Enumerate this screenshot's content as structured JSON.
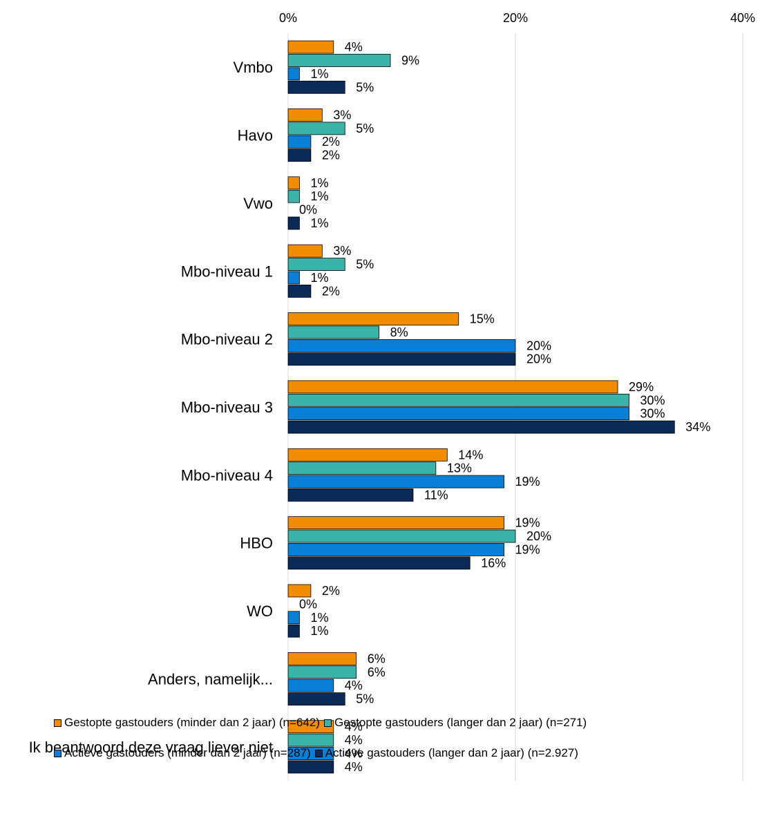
{
  "chart_data": {
    "type": "bar",
    "orientation": "horizontal",
    "categories": [
      "Vmbo",
      "Havo",
      "Vwo",
      "Mbo-niveau 1",
      "Mbo-niveau 2",
      "Mbo-niveau 3",
      "Mbo-niveau 4",
      "HBO",
      "WO",
      "Anders, namelijk...",
      "Ik beantwoord deze vraag liever niet"
    ],
    "series": [
      {
        "name": "Gestopte gastouders (minder dan 2 jaar) (n=642)",
        "color": "#F28C00",
        "values": [
          4,
          3,
          1,
          3,
          15,
          29,
          14,
          19,
          2,
          6,
          4
        ],
        "labels": [
          "4%",
          "3%",
          "1%",
          "3%",
          "15%",
          "29%",
          "14%",
          "19%",
          "2%",
          "6%",
          "4%"
        ]
      },
      {
        "name": "Gestopte gastouders (langer dan 2 jaar) (n=271)",
        "color": "#3AB3A8",
        "values": [
          9,
          5,
          1,
          5,
          8,
          30,
          13,
          20,
          0,
          6,
          4
        ],
        "labels": [
          "9%",
          "5%",
          "1%",
          "5%",
          "8%",
          "30%",
          "13%",
          "20%",
          "0%",
          "6%",
          "4%"
        ]
      },
      {
        "name": "Actieve gastouders (minder dan 2 jaar) (n=287)",
        "color": "#0A7FD8",
        "values": [
          1,
          2,
          0,
          1,
          20,
          30,
          19,
          19,
          1,
          4,
          4
        ],
        "labels": [
          "1%",
          "2%",
          "0%",
          "1%",
          "20%",
          "30%",
          "19%",
          "19%",
          "1%",
          "4%",
          "4%"
        ]
      },
      {
        "name": "Actieve gastouders (langer dan 2 jaar) (n=2.927)",
        "color": "#0B2A57",
        "values": [
          5,
          2,
          1,
          2,
          20,
          34,
          11,
          16,
          1,
          5,
          4
        ],
        "labels": [
          "5%",
          "2%",
          "1%",
          "2%",
          "20%",
          "34%",
          "11%",
          "16%",
          "1%",
          "5%",
          "4%"
        ]
      }
    ],
    "xlim": [
      0,
      40
    ],
    "xticks": [
      "0%",
      "20%",
      "40%"
    ],
    "xtick_values": [
      0,
      20,
      40
    ],
    "grid": true,
    "legend_position": "bottom"
  }
}
